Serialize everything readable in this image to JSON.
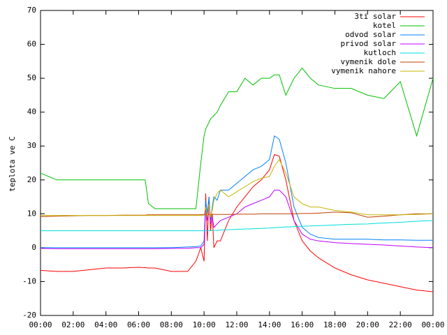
{
  "chart_data": {
    "type": "line",
    "y_label": "teplota ve C",
    "x": [
      0,
      1,
      2,
      3,
      4,
      5,
      6,
      6.4,
      6.6,
      7,
      8,
      9,
      9.5,
      9.8,
      10,
      10.1,
      10.2,
      10.3,
      10.4,
      10.5,
      10.6,
      10.8,
      11,
      11.5,
      12,
      12.5,
      13,
      13.5,
      14,
      14.3,
      14.6,
      15,
      15.5,
      16,
      16.5,
      17,
      18,
      19,
      20,
      21,
      22,
      23,
      24
    ],
    "xlim": [
      0,
      24
    ],
    "xticks": [
      {
        "value": 0,
        "label": "00:00"
      },
      {
        "value": 2,
        "label": "02:00"
      },
      {
        "value": 4,
        "label": "04:00"
      },
      {
        "value": 6,
        "label": "06:00"
      },
      {
        "value": 8,
        "label": "08:00"
      },
      {
        "value": 10,
        "label": "10:00"
      },
      {
        "value": 12,
        "label": "12:00"
      },
      {
        "value": 14,
        "label": "14:00"
      },
      {
        "value": 16,
        "label": "16:00"
      },
      {
        "value": 18,
        "label": "18:00"
      },
      {
        "value": 20,
        "label": "20:00"
      },
      {
        "value": 22,
        "label": "22:00"
      },
      {
        "value": 24,
        "label": "00:00"
      }
    ],
    "ylim": [
      -20,
      70
    ],
    "yticks": [
      -20,
      -10,
      0,
      10,
      20,
      30,
      40,
      50,
      60,
      70
    ],
    "legend": "top-right",
    "series": [
      {
        "name": "3ti solar",
        "color": "#ff0000",
        "values": [
          -6.7,
          -7,
          -7,
          -6.5,
          -6,
          -6,
          -5.8,
          -5.9,
          -6,
          -6,
          -7,
          -7,
          -4,
          0,
          -4,
          16,
          2,
          15,
          5,
          10,
          0,
          2,
          2,
          8,
          12,
          15,
          18,
          20,
          23,
          27.5,
          27,
          20,
          8,
          2,
          -1,
          -3,
          -6,
          -8,
          -9.5,
          -10.5,
          -11.5,
          -12.5,
          -13
        ]
      },
      {
        "name": "kotel",
        "color": "#00c000",
        "values": [
          22,
          20,
          20,
          20,
          20,
          20,
          20,
          20,
          13,
          11.5,
          11.5,
          11.5,
          11.5,
          25,
          33,
          35,
          36,
          37,
          38,
          38.5,
          39,
          40,
          42,
          46,
          46,
          50,
          48,
          50,
          50,
          51,
          51,
          45,
          50,
          53,
          50,
          48,
          47,
          47,
          45,
          44,
          49,
          33,
          50
        ]
      },
      {
        "name": "odvod solar",
        "color": "#0080ff",
        "values": [
          0,
          0,
          0,
          0,
          0,
          0,
          0,
          0,
          0,
          0,
          0,
          0.2,
          0.3,
          0.5,
          2,
          14,
          10,
          15,
          8,
          12,
          15,
          14,
          17,
          17,
          19,
          21,
          23,
          24,
          26,
          33,
          32,
          25,
          12,
          6,
          4,
          3,
          2.5,
          2.5,
          2.5,
          2.3,
          2.3,
          2.2,
          2.2
        ]
      },
      {
        "name": "privod solar",
        "color": "#c000ff",
        "values": [
          -0.2,
          -0.3,
          -0.3,
          -0.3,
          -0.3,
          -0.3,
          -0.3,
          -0.3,
          -0.3,
          -0.3,
          -0.2,
          -0.2,
          0,
          0,
          1,
          12,
          8,
          13,
          7,
          9,
          6,
          7,
          8,
          9,
          10,
          12,
          13,
          14,
          15,
          17,
          17,
          15,
          8,
          4,
          2.5,
          2,
          1.5,
          1.2,
          1,
          0.8,
          0.5,
          0.2,
          0
        ]
      },
      {
        "name": "kutloch",
        "color": "#00dddd",
        "values": [
          5,
          5,
          5,
          5,
          5,
          5,
          5,
          5,
          5,
          5,
          5,
          5,
          5,
          5,
          5,
          5,
          5,
          5,
          5,
          5.1,
          5.1,
          5.1,
          5.2,
          5.3,
          5.4,
          5.5,
          5.6,
          5.7,
          5.8,
          5.9,
          6,
          6.1,
          6.2,
          6.3,
          6.4,
          6.5,
          6.7,
          6.9,
          7,
          7.3,
          7.5,
          7.8,
          8
        ]
      },
      {
        "name": "vymenik dole",
        "color": "#c04000",
        "values": [
          9.2,
          9.3,
          9.4,
          9.5,
          9.5,
          9.6,
          9.6,
          9.6,
          9.7,
          9.7,
          9.7,
          9.7,
          9.7,
          9.7,
          9.8,
          9.8,
          9.8,
          9.8,
          9.8,
          9.8,
          9.8,
          9.8,
          9.8,
          9.8,
          9.9,
          9.9,
          9.9,
          10,
          10,
          10,
          10,
          10,
          10,
          10.1,
          10.1,
          10.2,
          10.5,
          10.3,
          9,
          9.3,
          9.7,
          10,
          10
        ]
      },
      {
        "name": "vymenik nahore",
        "color": "#c8b400",
        "values": [
          9.5,
          9.5,
          9.5,
          9.5,
          9.5,
          9.5,
          9.5,
          9.5,
          9.5,
          9.5,
          9.5,
          9.5,
          9.5,
          9.5,
          9.5,
          12,
          9,
          13,
          9,
          11,
          14,
          16,
          17,
          15,
          16.5,
          18,
          19.5,
          20.5,
          21,
          24,
          26,
          22,
          15,
          13,
          12,
          12,
          11,
          10.5,
          9.7,
          9.7,
          9.7,
          9.8,
          10
        ]
      }
    ]
  }
}
